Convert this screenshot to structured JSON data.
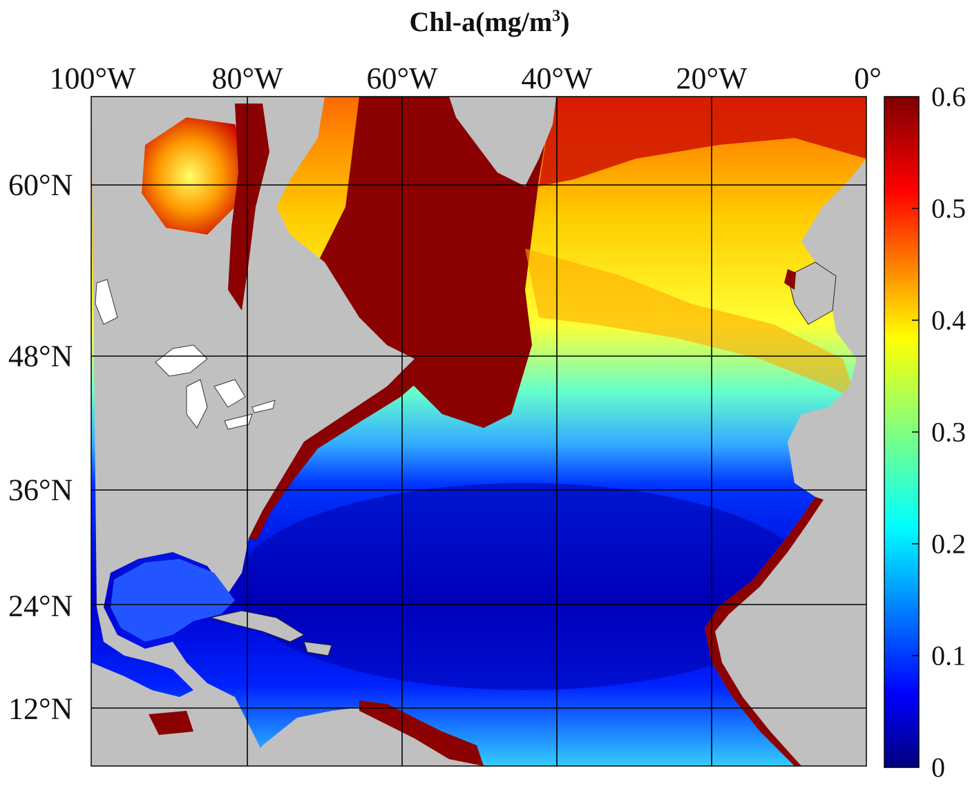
{
  "title": {
    "main": "Chl-a(mg/m",
    "sup": "3",
    "close": ")"
  },
  "longitude_labels": [
    "100°W",
    "80°W",
    "60°W",
    "40°W",
    "20°W",
    "0°"
  ],
  "latitude_labels": [
    "60°N",
    "48°N",
    "36°N",
    "24°N",
    "12°N"
  ],
  "colorbar": {
    "ticks": [
      "0.6",
      "0.5",
      "0.4",
      "0.3",
      "0.2",
      "0.1",
      "0"
    ],
    "range": [
      0,
      0.6
    ],
    "colormap": "jet",
    "colors": [
      "#00007f",
      "#0000ff",
      "#007fff",
      "#00ffff",
      "#7fff7f",
      "#ffff00",
      "#ff7f00",
      "#ff0000",
      "#7f0000"
    ]
  },
  "map_colors": {
    "land": "#c0c0c0",
    "lakes": "#ffffff",
    "grid": "#000000"
  }
}
